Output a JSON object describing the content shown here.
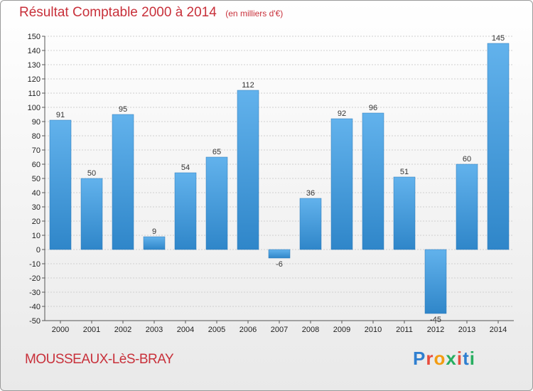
{
  "title": "Résultat Comptable 2000 à 2014",
  "unit_note": "(en milliers d'€)",
  "place": "MOUSSEAUX-LèS-BRAY",
  "brand": {
    "text": "Proxiti",
    "letter_colors": [
      "#2f7fd0",
      "#e84c3d",
      "#f39c12",
      "#27ae60",
      "#e84c3d",
      "#2f7fd0",
      "#27ae60"
    ]
  },
  "colors": {
    "bar_light": "#62b2ec",
    "bar_dark": "#2f86c9",
    "grid": "#cfcfcf",
    "axis": "#555555"
  },
  "chart_data": {
    "type": "bar",
    "title": "Résultat Comptable 2000 à 2014",
    "xlabel": "",
    "ylabel": "",
    "categories": [
      "2000",
      "2001",
      "2002",
      "2003",
      "2004",
      "2005",
      "2006",
      "2007",
      "2008",
      "2009",
      "2010",
      "2011",
      "2012",
      "2013",
      "2014"
    ],
    "values": [
      91,
      50,
      95,
      9,
      54,
      65,
      112,
      -6,
      36,
      92,
      96,
      51,
      -45,
      60,
      145
    ],
    "ylim": [
      -50,
      150
    ],
    "ytick_step": 10,
    "grid": true
  }
}
